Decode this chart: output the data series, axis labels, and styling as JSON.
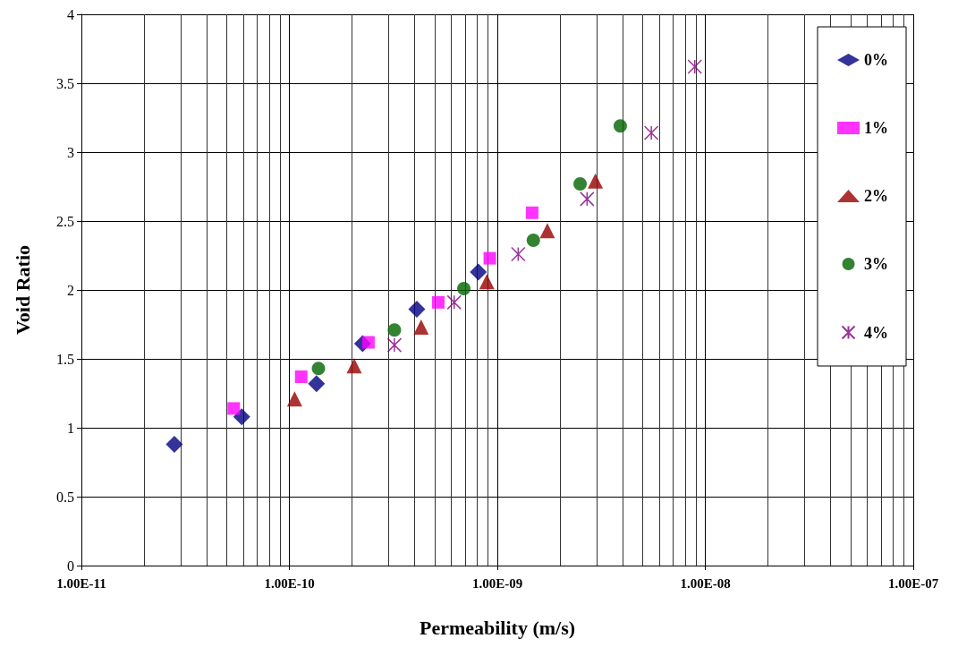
{
  "chart_data": {
    "type": "scatter",
    "xlabel": "Permeability (m/s)",
    "ylabel": "Void Ratio",
    "log": "x",
    "grid": true,
    "legend": "top right",
    "xlim": [
      1e-11,
      1e-07
    ],
    "xticks": [
      {
        "value": 1e-11,
        "label": "1.00E-11"
      },
      {
        "value": 1e-10,
        "label": "1.00E-10"
      },
      {
        "value": 1e-09,
        "label": "1.00E-09"
      },
      {
        "value": 1e-08,
        "label": "1.00E-08"
      },
      {
        "value": 1e-07,
        "label": "1.00E-07"
      }
    ],
    "ylim": [
      0,
      4
    ],
    "yticks": [
      0,
      0.5,
      1,
      1.5,
      2,
      2.5,
      3,
      3.5,
      4
    ],
    "series": [
      {
        "name": "0%",
        "color": "#000080",
        "marker": "diamond",
        "x": [
          2.8e-11,
          5.9e-11,
          1.35e-10,
          2.25e-10,
          4.1e-10,
          8.1e-10
        ],
        "values": [
          0.88,
          1.08,
          1.32,
          1.61,
          1.86,
          2.13
        ]
      },
      {
        "name": "1%",
        "color": "#ff00ff",
        "marker": "square",
        "x": [
          5.4e-11,
          1.14e-10,
          2.4e-10,
          5.2e-10,
          9.2e-10,
          1.47e-09
        ],
        "values": [
          1.14,
          1.37,
          1.62,
          1.91,
          2.23,
          2.56
        ]
      },
      {
        "name": "2%",
        "color": "#990000",
        "marker": "triangle",
        "x": [
          1.06e-10,
          2.05e-10,
          4.3e-10,
          8.9e-10,
          1.74e-09,
          2.96e-09
        ],
        "values": [
          1.21,
          1.45,
          1.73,
          2.06,
          2.43,
          2.79
        ]
      },
      {
        "name": "3%",
        "color": "#006400",
        "marker": "circle",
        "x": [
          1.38e-10,
          3.2e-10,
          6.9e-10,
          1.49e-09,
          2.5e-09,
          3.9e-09
        ],
        "values": [
          1.43,
          1.71,
          2.01,
          2.36,
          2.77,
          3.19
        ]
      },
      {
        "name": "4%",
        "color": "#800080",
        "marker": "cross",
        "x": [
          3.2e-10,
          6.2e-10,
          1.26e-09,
          2.7e-09,
          5.5e-09,
          8.9e-09
        ],
        "values": [
          1.6,
          1.91,
          2.26,
          2.66,
          3.14,
          3.62
        ]
      }
    ]
  }
}
